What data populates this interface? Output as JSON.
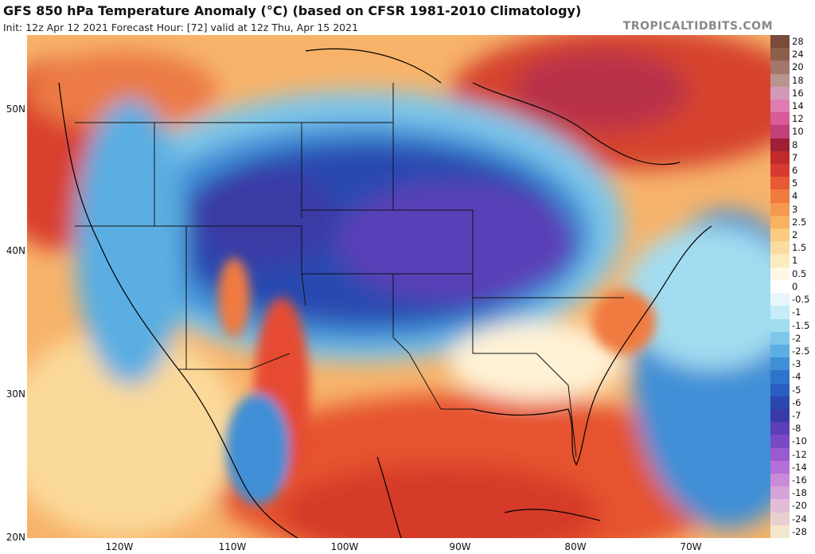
{
  "header": {
    "title": "GFS 850 hPa Temperature Anomaly (°C) (based on CFSR 1981-2010 Climatology)",
    "subtitle": "Init: 12z Apr 12 2021   Forecast Hour: [72]   valid at 12z Thu, Apr 15 2021",
    "brand": "TROPICALTIDBITS.COM"
  },
  "axes": {
    "lat_labels": [
      "50N",
      "40N",
      "30N",
      "20N"
    ],
    "lon_labels": [
      "120W",
      "110W",
      "100W",
      "90W",
      "80W",
      "70W"
    ]
  },
  "legend": {
    "items": [
      {
        "label": "28",
        "color": "#7a4a3a"
      },
      {
        "label": "24",
        "color": "#8c5e4c"
      },
      {
        "label": "20",
        "color": "#a3766a"
      },
      {
        "label": "18",
        "color": "#b8948f"
      },
      {
        "label": "16",
        "color": "#d39ab7"
      },
      {
        "label": "14",
        "color": "#e07cb2"
      },
      {
        "label": "12",
        "color": "#d85a98"
      },
      {
        "label": "10",
        "color": "#c0407a"
      },
      {
        "label": "8",
        "color": "#a01f35"
      },
      {
        "label": "7",
        "color": "#c02a2a"
      },
      {
        "label": "6",
        "color": "#d93a30"
      },
      {
        "label": "5",
        "color": "#e65a35"
      },
      {
        "label": "4",
        "color": "#f07a40"
      },
      {
        "label": "3",
        "color": "#f5994e"
      },
      {
        "label": "2.5",
        "color": "#f8b260"
      },
      {
        "label": "2",
        "color": "#facb80"
      },
      {
        "label": "1.5",
        "color": "#fbdca0"
      },
      {
        "label": "1",
        "color": "#fdebc0"
      },
      {
        "label": "0.5",
        "color": "#fff8e6"
      },
      {
        "label": "0",
        "color": "#ffffff"
      },
      {
        "label": "-0.5",
        "color": "#e6f6fb"
      },
      {
        "label": "-1",
        "color": "#c6ecf6"
      },
      {
        "label": "-1.5",
        "color": "#a2dcf0"
      },
      {
        "label": "-2",
        "color": "#7ec6ea"
      },
      {
        "label": "-2.5",
        "color": "#5aaee2"
      },
      {
        "label": "-3",
        "color": "#3f8fd6"
      },
      {
        "label": "-4",
        "color": "#2f74cc"
      },
      {
        "label": "-5",
        "color": "#2a5dbf"
      },
      {
        "label": "-6",
        "color": "#2b48b0"
      },
      {
        "label": "-7",
        "color": "#3a3aa6"
      },
      {
        "label": "-8",
        "color": "#5a3fb8"
      },
      {
        "label": "-10",
        "color": "#7a4ac6"
      },
      {
        "label": "-12",
        "color": "#9a5ad0"
      },
      {
        "label": "-14",
        "color": "#b46fd8"
      },
      {
        "label": "-16",
        "color": "#c98ad8"
      },
      {
        "label": "-18",
        "color": "#d8a4d8"
      },
      {
        "label": "-20",
        "color": "#e2bcd8"
      },
      {
        "label": "-24",
        "color": "#e9d0d0"
      },
      {
        "label": "-28",
        "color": "#f4e6cc"
      }
    ]
  }
}
